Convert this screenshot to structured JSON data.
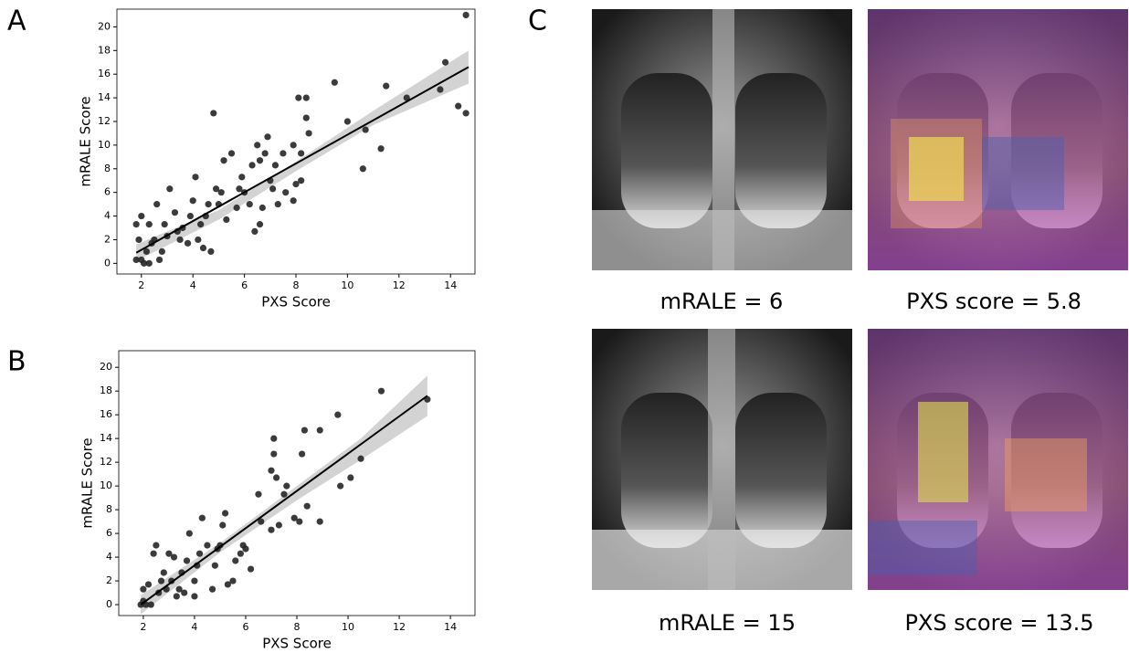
{
  "panel_labels": [
    "A",
    "B",
    "C"
  ],
  "images": [
    {
      "caption": "mRALE = 6"
    },
    {
      "caption": "PXS score = 5.8"
    },
    {
      "caption": "mRALE = 15"
    },
    {
      "caption": "PXS score = 13.5"
    }
  ],
  "chart_data": [
    {
      "type": "scatter",
      "xlabel": "PXS Score",
      "ylabel": "mRALE Score",
      "color": "#262626",
      "line_color": "#000000",
      "band_color": "#d3d3d3",
      "xlim": [
        1.05,
        14.95
      ],
      "ylim": [
        -0.9,
        21.5
      ],
      "xticks": [
        2,
        4,
        6,
        8,
        10,
        12,
        14
      ],
      "yticks": [
        0,
        2,
        4,
        6,
        8,
        10,
        12,
        14,
        16,
        18,
        20
      ],
      "x": [
        14.6,
        13.8,
        14.6,
        14.3,
        13.6,
        12.3,
        11.5,
        11.3,
        10.7,
        10.6,
        10,
        9.5,
        8.4,
        8.1,
        8.4,
        8.5,
        8.2,
        8.2,
        7.9,
        8,
        7.9,
        7.6,
        7.5,
        7.2,
        6.9,
        6.8,
        6.6,
        6.3,
        6.5,
        7,
        7.3,
        7.1,
        6.7,
        6.6,
        6.4,
        6.2,
        5.9,
        5.5,
        5.2,
        4.8,
        5.1,
        4.9,
        5,
        4.6,
        4.5,
        4.3,
        4.1,
        4,
        3.9,
        3.6,
        3.5,
        3.3,
        3.1,
        3,
        2.9,
        2.8,
        2.7,
        2.5,
        2.4,
        2.3,
        2.2,
        2.1,
        2,
        2,
        1.9,
        1.8,
        1.8,
        2.3,
        2.6,
        3.4,
        4.2,
        4.4,
        5.3,
        5.7,
        6,
        4.7,
        5.8,
        3.8
      ],
      "values": [
        21,
        17,
        12.7,
        13.3,
        14.7,
        14,
        15,
        9.7,
        11.3,
        8,
        12,
        15.3,
        14,
        14,
        12.3,
        11,
        9.3,
        7,
        10,
        6.7,
        5.3,
        6,
        9.3,
        8.3,
        10.7,
        9.3,
        8.7,
        8.3,
        10,
        7,
        5,
        6.3,
        4.7,
        3.3,
        2.7,
        5,
        7.3,
        9.3,
        8.7,
        12.7,
        6,
        6.3,
        5,
        5,
        4,
        3.3,
        7.3,
        5.3,
        4,
        3,
        2,
        4.3,
        6.3,
        2.3,
        3.3,
        1,
        0.3,
        2,
        1.7,
        3.3,
        1,
        0,
        4,
        0.3,
        2,
        3.3,
        0.3,
        0,
        5,
        2.7,
        2,
        1.3,
        3.7,
        4.7,
        6,
        1,
        6.3,
        1.7
      ],
      "trend": {
        "x": [
          1.8,
          14.7
        ],
        "y": [
          0.9,
          16.6
        ]
      },
      "band": {
        "x": [
          1.8,
          5,
          8,
          11,
          14.7
        ],
        "lower": [
          0.2,
          3.7,
          7.8,
          11.7,
          15.2
        ],
        "upper": [
          1.6,
          4.5,
          8.6,
          12.9,
          18.0
        ]
      }
    },
    {
      "type": "scatter",
      "xlabel": "PXS Score",
      "ylabel": "mRALE Score",
      "color": "#262626",
      "line_color": "#000000",
      "band_color": "#d3d3d3",
      "xlim": [
        1.04,
        14.96
      ],
      "ylim": [
        -0.92,
        21.4
      ],
      "xticks": [
        2,
        4,
        6,
        8,
        10,
        12,
        14
      ],
      "yticks": [
        0,
        2,
        4,
        6,
        8,
        10,
        12,
        14,
        16,
        18,
        20
      ],
      "x": [
        13.1,
        11.3,
        10.5,
        10.1,
        9.6,
        9.7,
        8.9,
        8.9,
        8.3,
        8.2,
        8.4,
        8.1,
        7.9,
        7.6,
        7.5,
        7.1,
        7.1,
        7,
        7.2,
        7,
        7.3,
        6.6,
        6.5,
        6.2,
        5.9,
        5.8,
        5.6,
        5.5,
        5.2,
        5.1,
        5,
        4.9,
        4.8,
        4.7,
        4.5,
        4.3,
        4.1,
        4,
        4,
        3.8,
        3.7,
        3.5,
        3.4,
        3.2,
        3.1,
        3,
        2.9,
        2.8,
        2.6,
        2.5,
        2.4,
        2.3,
        2.2,
        2.1,
        2,
        1.9,
        2,
        3.6,
        4.2,
        5.3,
        6,
        3.3,
        2.7
      ],
      "values": [
        17.3,
        18,
        12.3,
        10.7,
        16,
        10,
        14.7,
        7,
        14.7,
        12.7,
        8.3,
        7,
        7.3,
        10,
        9.3,
        14,
        12.7,
        11.3,
        10.7,
        6.3,
        6.7,
        7,
        9.3,
        3,
        5,
        4.3,
        3.7,
        2,
        7.7,
        6.7,
        5,
        4.7,
        3.3,
        1.3,
        5,
        7.3,
        3.3,
        2,
        0.7,
        6,
        3.7,
        2.7,
        1.3,
        4,
        2,
        4.3,
        1.3,
        2.7,
        1,
        5,
        4.3,
        0,
        1.7,
        0,
        1.3,
        0,
        0.3,
        1,
        4.3,
        1.7,
        4.7,
        0.7,
        2
      ],
      "trend": {
        "x": [
          1.9,
          13.1
        ],
        "y": [
          0,
          17.6
        ]
      },
      "band": {
        "x": [
          1.9,
          5,
          8,
          10.5,
          13.1
        ],
        "lower": [
          -0.8,
          4.4,
          8.8,
          12.2,
          15.9
        ],
        "upper": [
          0.8,
          5.2,
          10.0,
          14.0,
          19.3
        ]
      }
    }
  ]
}
